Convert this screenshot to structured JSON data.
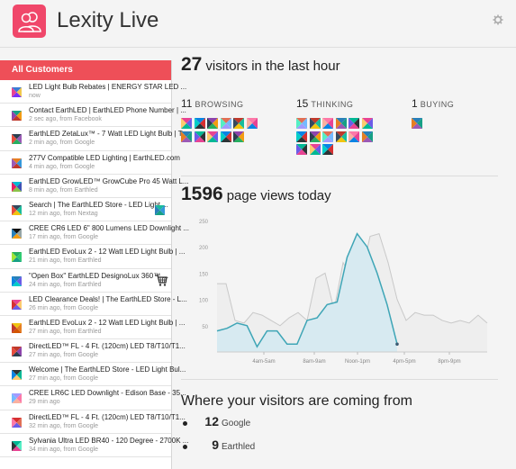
{
  "app": {
    "title": "Lexity Live"
  },
  "sidebar": {
    "heading": "All Customers",
    "customers": [
      {
        "title": "LED Light Bulb Rebates | ENERGY STAR LED ...",
        "meta": "now",
        "avatar": [
          "#3a7bd5",
          "#f2c94c",
          "#7b2ff7",
          "#e84393"
        ],
        "extra": ""
      },
      {
        "title": "Contact EarthLED | EarthLED Phone Number | ...",
        "meta": "2 sec ago, from Facebook",
        "avatar": [
          "#16a085",
          "#f39c12",
          "#c0392b",
          "#8e44ad"
        ],
        "extra": ""
      },
      {
        "title": "EarthLED ZetaLux™ - 7 Watt LED Light Bulb | T...",
        "meta": "2 min ago, from Google",
        "avatar": [
          "#2c3e50",
          "#9b59b6",
          "#27ae60",
          "#e74c3c"
        ],
        "extra": ""
      },
      {
        "title": "277V Compatible LED Lighting | EarthLED.com",
        "meta": "4 min ago, from Google",
        "avatar": [
          "#e67e22",
          "#3498db",
          "#c0392b",
          "#9b59b6"
        ],
        "extra": ""
      },
      {
        "title": "EarthLED GrowLED™ GrowCube Pro 45 Watt L...",
        "meta": "8 min ago, from Earthled",
        "avatar": [
          "#00bcd4",
          "#3f51b5",
          "#8bc34a",
          "#e91e63"
        ],
        "extra": ""
      },
      {
        "title": "Search | The EarthLED Store - LED Light ...",
        "meta": "12 min ago, from Nextag",
        "avatar": [
          "#34495e",
          "#1abc9c",
          "#f1c40f",
          "#e74c3c"
        ],
        "extra": "tile"
      },
      {
        "title": "CREE CR6 LED 6\" 800 Lumens LED Downlight ...",
        "meta": "17 min ago, from Google",
        "avatar": [
          "#111111",
          "#95a5a6",
          "#f39c12",
          "#2980b9"
        ],
        "extra": ""
      },
      {
        "title": "EarthLED EvoLux 2 - 12 Watt LED Light Bulb | ...",
        "meta": "21 min ago, from Earthled",
        "avatar": [
          "#27ae60",
          "#2ecc71",
          "#16a085",
          "#a3e635"
        ],
        "extra": ""
      },
      {
        "title": "\"Open Box\" EarthLED DesignoLux 360™ ...",
        "meta": "24 min ago, from Earthled",
        "avatar": [
          "#2980b9",
          "#6c5ce7",
          "#00cec9",
          "#0984e3"
        ],
        "extra": "cart"
      },
      {
        "title": "LED Clearance Deals! | The EarthLED Store - L...",
        "meta": "26 min ago, from Google",
        "avatar": [
          "#e84393",
          "#fdcb6e",
          "#6c5ce7",
          "#d63031"
        ],
        "extra": ""
      },
      {
        "title": "EarthLED EvoLux 2 - 12 Watt LED Light Bulb | ...",
        "meta": "27 min ago, from Earthled",
        "avatar": [
          "#f1c40f",
          "#e67e22",
          "#d35400",
          "#c0392b"
        ],
        "extra": ""
      },
      {
        "title": "DirectLED™ FL - 4 Ft. (120cm) LED T8/T10/T1...",
        "meta": "27 min ago, from Google",
        "avatar": [
          "#c0392b",
          "#8e44ad",
          "#2c3e50",
          "#e74c3c"
        ],
        "extra": ""
      },
      {
        "title": "Welcome | The EarthLED Store - LED Light Bul...",
        "meta": "27 min ago, from Google",
        "avatar": [
          "#2d3436",
          "#00b894",
          "#fdcb6e",
          "#0984e3"
        ],
        "extra": ""
      },
      {
        "title": "CREE LR6C LED Downlight - Edison Base - 35...",
        "meta": "29 min ago",
        "avatar": [
          "#a29bfe",
          "#fd79a8",
          "#fab1a0",
          "#74b9ff"
        ],
        "extra": ""
      },
      {
        "title": "DirectLED™ FL - 4 Ft. (120cm) LED T8/T10/T1...",
        "meta": "32 min ago, from Google",
        "avatar": [
          "#d63031",
          "#e17055",
          "#6c5ce7",
          "#fd79a8"
        ],
        "extra": ""
      },
      {
        "title": "Sylvania Ultra LED BR40 - 120 Degree - 2700K ...",
        "meta": "34 min ago, from Google",
        "avatar": [
          "#00b894",
          "#55efc4",
          "#e84393",
          "#2d3436"
        ],
        "extra": ""
      }
    ]
  },
  "visitors": {
    "count": "27",
    "label": "visitors in the last hour"
  },
  "groups": [
    {
      "count": "11",
      "label": "BROWSING",
      "tiles": 11
    },
    {
      "count": "15",
      "label": "THINKING",
      "tiles": 15
    },
    {
      "count": "1",
      "label": "BUYING",
      "tiles": 1
    }
  ],
  "pageviews": {
    "count": "1596",
    "label": "page views today"
  },
  "chart_data": {
    "type": "area",
    "x_ticks": [
      "4am-5am",
      "8am-9am",
      "Noon-1pm",
      "4pm-5pm",
      "8pm-9pm"
    ],
    "y_ticks": [
      "50",
      "100",
      "150",
      "200",
      "250"
    ],
    "ylim": [
      0,
      250
    ],
    "series": [
      {
        "values": [
          40,
          45,
          55,
          50,
          10,
          40,
          40,
          15,
          15,
          60,
          65,
          90,
          95,
          180,
          225,
          200,
          150,
          90,
          15
        ]
      },
      {
        "values": [
          130,
          130,
          60,
          55,
          75,
          70,
          60,
          50,
          65,
          75,
          60,
          140,
          150,
          80,
          170,
          140,
          145,
          220,
          225,
          170,
          100,
          60,
          75,
          70,
          70,
          60,
          55,
          60,
          55,
          70,
          55
        ]
      }
    ]
  },
  "sources": {
    "title": "Where your visitors are coming from",
    "items": [
      {
        "count": "12",
        "name": "Google"
      },
      {
        "count": "9",
        "name": "Earthled"
      }
    ]
  },
  "colors": {
    "accent": "#ee4f58",
    "logo": "#f0476a",
    "area_fill": "#d7eaf1",
    "area_line": "#3ea5b6",
    "grey_line": "#c8c8c8"
  },
  "icons": {
    "logo": "people-icon",
    "settings": "gear-icon",
    "cart": "cart-icon"
  }
}
